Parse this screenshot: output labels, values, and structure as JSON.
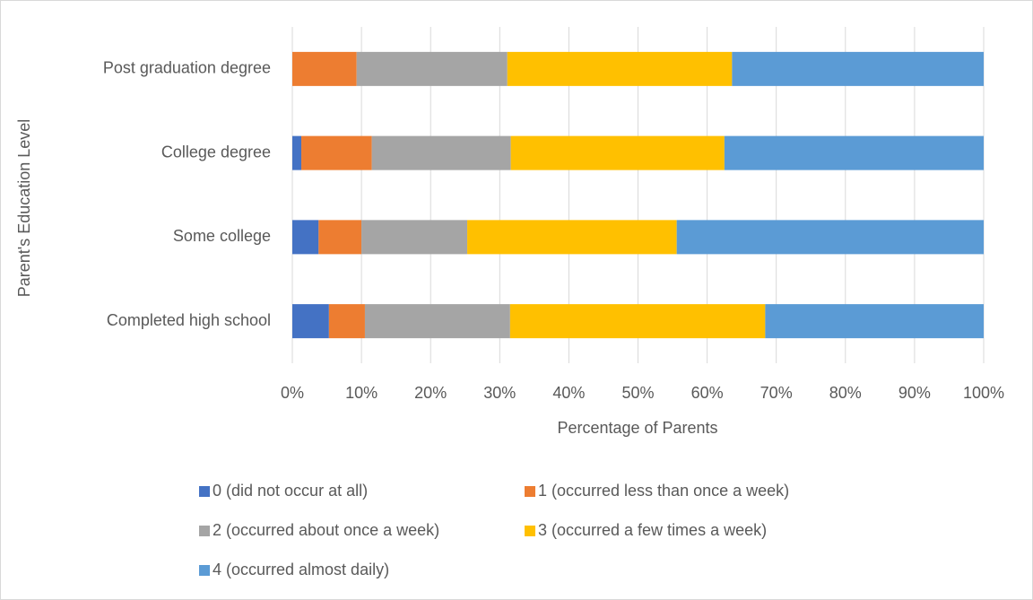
{
  "chart_data": {
    "type": "stacked_barh",
    "y_axis_label": "Parent's Education Level",
    "x_axis_label": "Percentage of Parents",
    "categories": [
      "Post graduation degree",
      "College degree",
      "Some college",
      "Completed high school"
    ],
    "series": [
      {
        "name": "0 (did not occur at all)",
        "color": "#4472c4",
        "values": [
          0,
          1.3,
          3.8,
          5.3
        ]
      },
      {
        "name": "1 (occurred less than once a week)",
        "color": "#ed7d31",
        "values": [
          9.3,
          10.2,
          6.2,
          5.2
        ]
      },
      {
        "name": "2 (occurred about once a week)",
        "color": "#a5a5a5",
        "values": [
          21.8,
          20.1,
          15.3,
          21.0
        ]
      },
      {
        "name": "3 (occurred a few times a week)",
        "color": "#ffc000",
        "values": [
          32.5,
          30.9,
          30.3,
          36.9
        ]
      },
      {
        "name": "4 (occurred almost daily)",
        "color": "#5b9bd5",
        "values": [
          36.4,
          37.5,
          44.4,
          31.6
        ]
      }
    ],
    "xlim": [
      0,
      100
    ],
    "xticks": [
      {
        "value": 0,
        "label": "0%"
      },
      {
        "value": 10,
        "label": "10%"
      },
      {
        "value": 20,
        "label": "20%"
      },
      {
        "value": 30,
        "label": "30%"
      },
      {
        "value": 40,
        "label": "40%"
      },
      {
        "value": 50,
        "label": "50%"
      },
      {
        "value": 60,
        "label": "60%"
      },
      {
        "value": 70,
        "label": "70%"
      },
      {
        "value": 80,
        "label": "80%"
      },
      {
        "value": 90,
        "label": "90%"
      },
      {
        "value": 100,
        "label": "100%"
      }
    ],
    "grid": true
  }
}
